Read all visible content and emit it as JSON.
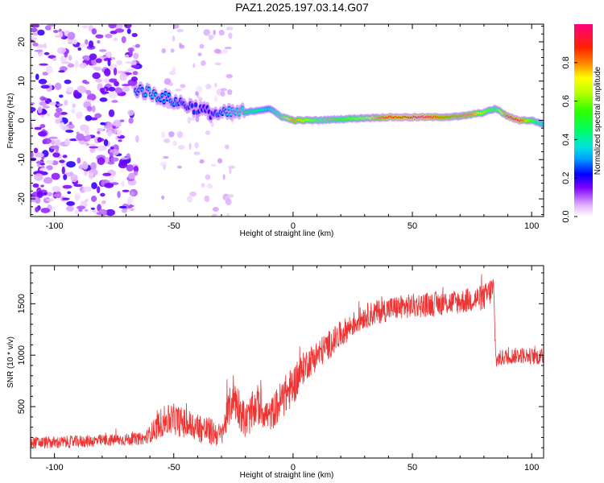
{
  "title": "PAZ1.2025.197.03.14.G07",
  "chart_data": [
    {
      "type": "heatmap",
      "xlabel": "Height of straight line (km)",
      "ylabel": "Frequency (Hz)",
      "xlim": [
        -110,
        105
      ],
      "ylim": [
        -24.5,
        24.5
      ],
      "xticks": [
        -100,
        -50,
        0,
        50,
        100
      ],
      "yticks": [
        -20,
        -10,
        0,
        10,
        20
      ],
      "colorbar": {
        "label": "Normalized spectral amplitude",
        "range": [
          0,
          1
        ],
        "ticks": [
          0.0,
          0.2,
          0.4,
          0.6,
          0.8
        ],
        "tick_labels": [
          "0.0",
          "0.2",
          "0.4",
          "0.6",
          "0.8"
        ]
      },
      "ridge": {
        "x": [
          -65,
          -60,
          -55,
          -50,
          -45,
          -40,
          -35,
          -30,
          -25,
          -20,
          -15,
          -10,
          -5,
          0,
          10,
          20,
          30,
          40,
          50,
          60,
          70,
          75,
          80,
          85,
          90,
          95,
          100,
          105
        ],
        "freq": [
          8,
          7,
          6,
          5,
          4,
          3,
          2,
          1.5,
          2,
          2,
          2.5,
          3,
          1,
          0,
          0,
          0.3,
          0.6,
          0.8,
          0.8,
          0.8,
          1,
          1.5,
          2,
          3,
          1,
          0,
          0,
          -1
        ],
        "amp": [
          0.3,
          0.35,
          0.3,
          0.3,
          0.25,
          0.25,
          0.2,
          0.3,
          0.4,
          0.45,
          0.45,
          0.4,
          0.55,
          0.8,
          0.6,
          0.55,
          0.65,
          0.9,
          0.95,
          0.85,
          0.8,
          0.8,
          0.65,
          0.55,
          0.85,
          0.9,
          0.6,
          0.45
        ]
      }
    },
    {
      "type": "line",
      "xlabel": "Height of straight line (km)",
      "ylabel": "SNR (10 * v/v)",
      "xlim": [
        -110,
        105
      ],
      "ylim": [
        0,
        1870
      ],
      "xticks": [
        -100,
        -50,
        0,
        50,
        100
      ],
      "yticks": [
        500,
        1000,
        1500
      ],
      "color": "#ee3333",
      "series": [
        {
          "x": [
            -110,
            -100,
            -90,
            -80,
            -70,
            -62,
            -55,
            -50,
            -45,
            -40,
            -35,
            -30,
            -25,
            -20,
            -15,
            -10,
            -5,
            0,
            5,
            10,
            15,
            20,
            25,
            30,
            40,
            50,
            60,
            70,
            80,
            84,
            85,
            88,
            95,
            105
          ],
          "y": [
            150,
            150,
            160,
            170,
            180,
            190,
            350,
            380,
            330,
            300,
            260,
            220,
            620,
            350,
            520,
            400,
            560,
            700,
            900,
            1000,
            1100,
            1200,
            1300,
            1380,
            1450,
            1480,
            1500,
            1520,
            1560,
            1650,
            950,
            980,
            1000,
            980
          ],
          "noise": [
            60,
            60,
            60,
            60,
            60,
            60,
            150,
            150,
            150,
            150,
            140,
            110,
            220,
            180,
            200,
            150,
            200,
            200,
            150,
            150,
            140,
            130,
            120,
            120,
            120,
            120,
            120,
            120,
            130,
            140,
            80,
            80,
            80,
            80
          ]
        }
      ]
    }
  ]
}
